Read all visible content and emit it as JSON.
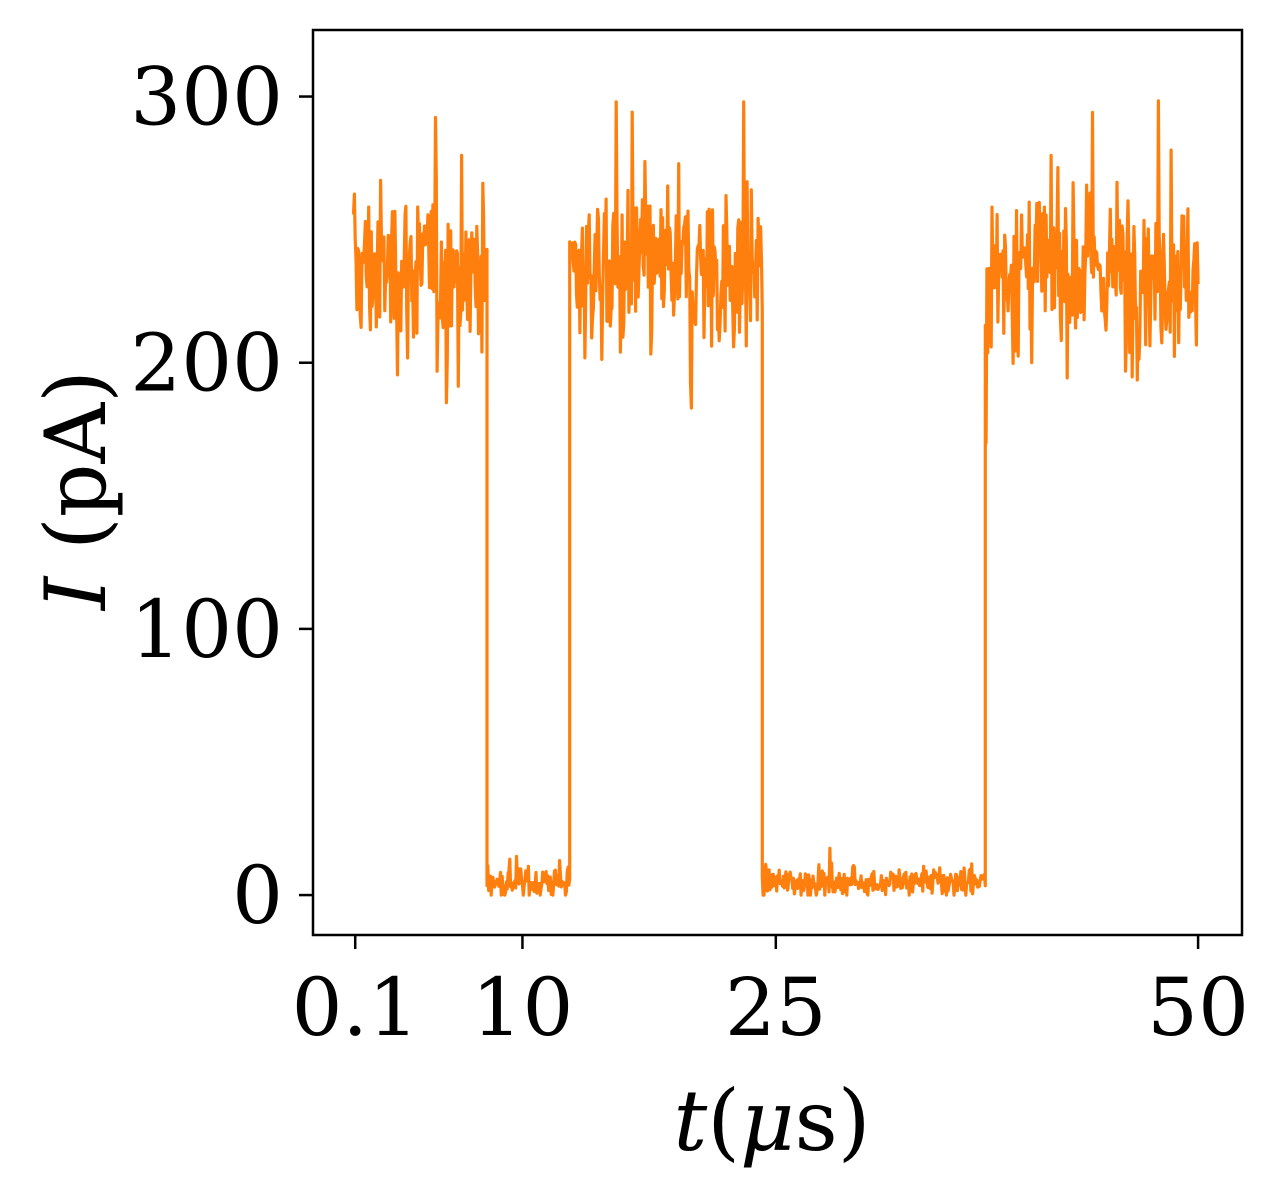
{
  "chart_data": {
    "type": "line",
    "title": "",
    "xlabel": "t(μs)",
    "ylabel": "I (pA)",
    "x_tick_values": [
      0.1,
      10,
      25,
      50
    ],
    "x_tick_labels": [
      "0.1",
      "10",
      "25",
      "50"
    ],
    "y_tick_values": [
      0,
      100,
      200,
      300
    ],
    "y_tick_labels": [
      "0",
      "100",
      "200",
      "300"
    ],
    "xlim": [
      -2.4,
      52.6
    ],
    "ylim": [
      -15,
      325
    ],
    "grid": false,
    "legend": "none",
    "series": [
      {
        "color": "#ff7f0e",
        "segments": [
          {
            "state": "high",
            "x_start": 0.0,
            "x_end": 7.9,
            "mean": 235,
            "min": 185,
            "max": 305
          },
          {
            "state": "low",
            "x_start": 7.9,
            "x_end": 12.8,
            "mean": 5,
            "min": 0,
            "max": 15
          },
          {
            "state": "high",
            "x_start": 12.8,
            "x_end": 24.2,
            "mean": 235,
            "min": 183,
            "max": 298
          },
          {
            "state": "low",
            "x_start": 24.2,
            "x_end": 37.4,
            "mean": 5,
            "min": 0,
            "max": 20
          },
          {
            "state": "high",
            "x_start": 37.4,
            "x_end": 50.0,
            "mean": 235,
            "min": 170,
            "max": 317
          }
        ]
      }
    ]
  }
}
